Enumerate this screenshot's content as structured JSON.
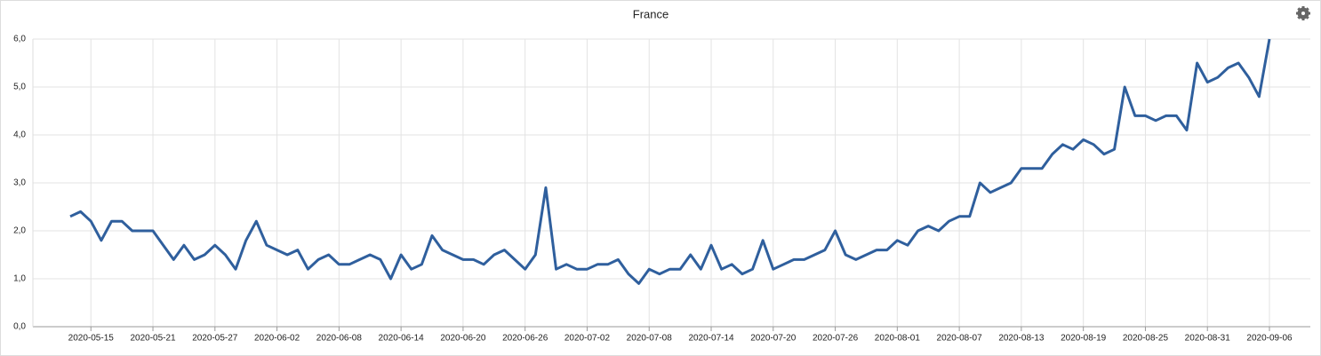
{
  "chart_data": {
    "type": "line",
    "title": "France",
    "x": [
      "2020-05-13",
      "2020-05-14",
      "2020-05-15",
      "2020-05-16",
      "2020-05-17",
      "2020-05-18",
      "2020-05-19",
      "2020-05-20",
      "2020-05-21",
      "2020-05-22",
      "2020-05-23",
      "2020-05-24",
      "2020-05-25",
      "2020-05-26",
      "2020-05-27",
      "2020-05-28",
      "2020-05-29",
      "2020-05-30",
      "2020-05-31",
      "2020-06-01",
      "2020-06-02",
      "2020-06-03",
      "2020-06-04",
      "2020-06-05",
      "2020-06-06",
      "2020-06-07",
      "2020-06-08",
      "2020-06-09",
      "2020-06-10",
      "2020-06-11",
      "2020-06-12",
      "2020-06-13",
      "2020-06-14",
      "2020-06-15",
      "2020-06-16",
      "2020-06-17",
      "2020-06-18",
      "2020-06-19",
      "2020-06-20",
      "2020-06-21",
      "2020-06-22",
      "2020-06-23",
      "2020-06-24",
      "2020-06-25",
      "2020-06-26",
      "2020-06-27",
      "2020-06-28",
      "2020-06-29",
      "2020-06-30",
      "2020-07-01",
      "2020-07-02",
      "2020-07-03",
      "2020-07-04",
      "2020-07-05",
      "2020-07-06",
      "2020-07-07",
      "2020-07-08",
      "2020-07-09",
      "2020-07-10",
      "2020-07-11",
      "2020-07-12",
      "2020-07-13",
      "2020-07-14",
      "2020-07-15",
      "2020-07-16",
      "2020-07-17",
      "2020-07-18",
      "2020-07-19",
      "2020-07-20",
      "2020-07-21",
      "2020-07-22",
      "2020-07-23",
      "2020-07-24",
      "2020-07-25",
      "2020-07-26",
      "2020-07-27",
      "2020-07-28",
      "2020-07-29",
      "2020-07-30",
      "2020-07-31",
      "2020-08-01",
      "2020-08-02",
      "2020-08-03",
      "2020-08-04",
      "2020-08-05",
      "2020-08-06",
      "2020-08-07",
      "2020-08-08",
      "2020-08-09",
      "2020-08-10",
      "2020-08-11",
      "2020-08-12",
      "2020-08-13",
      "2020-08-14",
      "2020-08-15",
      "2020-08-16",
      "2020-08-17",
      "2020-08-18",
      "2020-08-19",
      "2020-08-20",
      "2020-08-21",
      "2020-08-22",
      "2020-08-23",
      "2020-08-24",
      "2020-08-25",
      "2020-08-26",
      "2020-08-27",
      "2020-08-28",
      "2020-08-29",
      "2020-08-30",
      "2020-08-31",
      "2020-09-01",
      "2020-09-02",
      "2020-09-03",
      "2020-09-04",
      "2020-09-05",
      "2020-09-06"
    ],
    "series": [
      {
        "color": "#2f5f9d",
        "values": [
          2.3,
          2.4,
          2.2,
          1.8,
          2.2,
          2.2,
          2.0,
          2.0,
          2.0,
          1.7,
          1.4,
          1.7,
          1.4,
          1.5,
          1.7,
          1.5,
          1.2,
          1.8,
          2.2,
          1.7,
          1.6,
          1.5,
          1.6,
          1.2,
          1.4,
          1.5,
          1.3,
          1.3,
          1.4,
          1.5,
          1.4,
          1.0,
          1.5,
          1.2,
          1.3,
          1.9,
          1.6,
          1.5,
          1.4,
          1.4,
          1.3,
          1.5,
          1.6,
          1.4,
          1.2,
          1.5,
          2.9,
          1.2,
          1.3,
          1.2,
          1.2,
          1.3,
          1.3,
          1.4,
          1.1,
          0.9,
          1.2,
          1.1,
          1.2,
          1.2,
          1.5,
          1.2,
          1.7,
          1.2,
          1.3,
          1.1,
          1.2,
          1.8,
          1.2,
          1.3,
          1.4,
          1.4,
          1.5,
          1.6,
          2.0,
          1.5,
          1.4,
          1.5,
          1.6,
          1.6,
          1.8,
          1.7,
          2.0,
          2.1,
          2.0,
          2.2,
          2.3,
          2.3,
          3.0,
          2.8,
          2.9,
          3.0,
          3.3,
          3.3,
          3.3,
          3.6,
          3.8,
          3.7,
          3.9,
          3.8,
          3.6,
          3.7,
          5.0,
          4.4,
          4.4,
          4.3,
          4.4,
          4.4,
          4.1,
          5.5,
          5.1,
          5.2,
          5.4,
          5.5,
          5.2,
          4.8,
          6.0
        ]
      }
    ],
    "xticks": [
      "2020-05-15",
      "2020-05-21",
      "2020-05-27",
      "2020-06-02",
      "2020-06-08",
      "2020-06-14",
      "2020-06-20",
      "2020-06-26",
      "2020-07-02",
      "2020-07-08",
      "2020-07-14",
      "2020-07-20",
      "2020-07-26",
      "2020-08-01",
      "2020-08-07",
      "2020-08-13",
      "2020-08-19",
      "2020-08-25",
      "2020-08-31",
      "2020-09-06"
    ],
    "ylim": [
      0,
      6
    ],
    "yticks": [
      {
        "value": 0,
        "label": "0,0"
      },
      {
        "value": 1,
        "label": "1,0"
      },
      {
        "value": 2,
        "label": "2,0"
      },
      {
        "value": 3,
        "label": "3,0"
      },
      {
        "value": 4,
        "label": "4,0"
      },
      {
        "value": 5,
        "label": "5,0"
      },
      {
        "value": 6,
        "label": "6,0"
      }
    ],
    "grid": true
  }
}
